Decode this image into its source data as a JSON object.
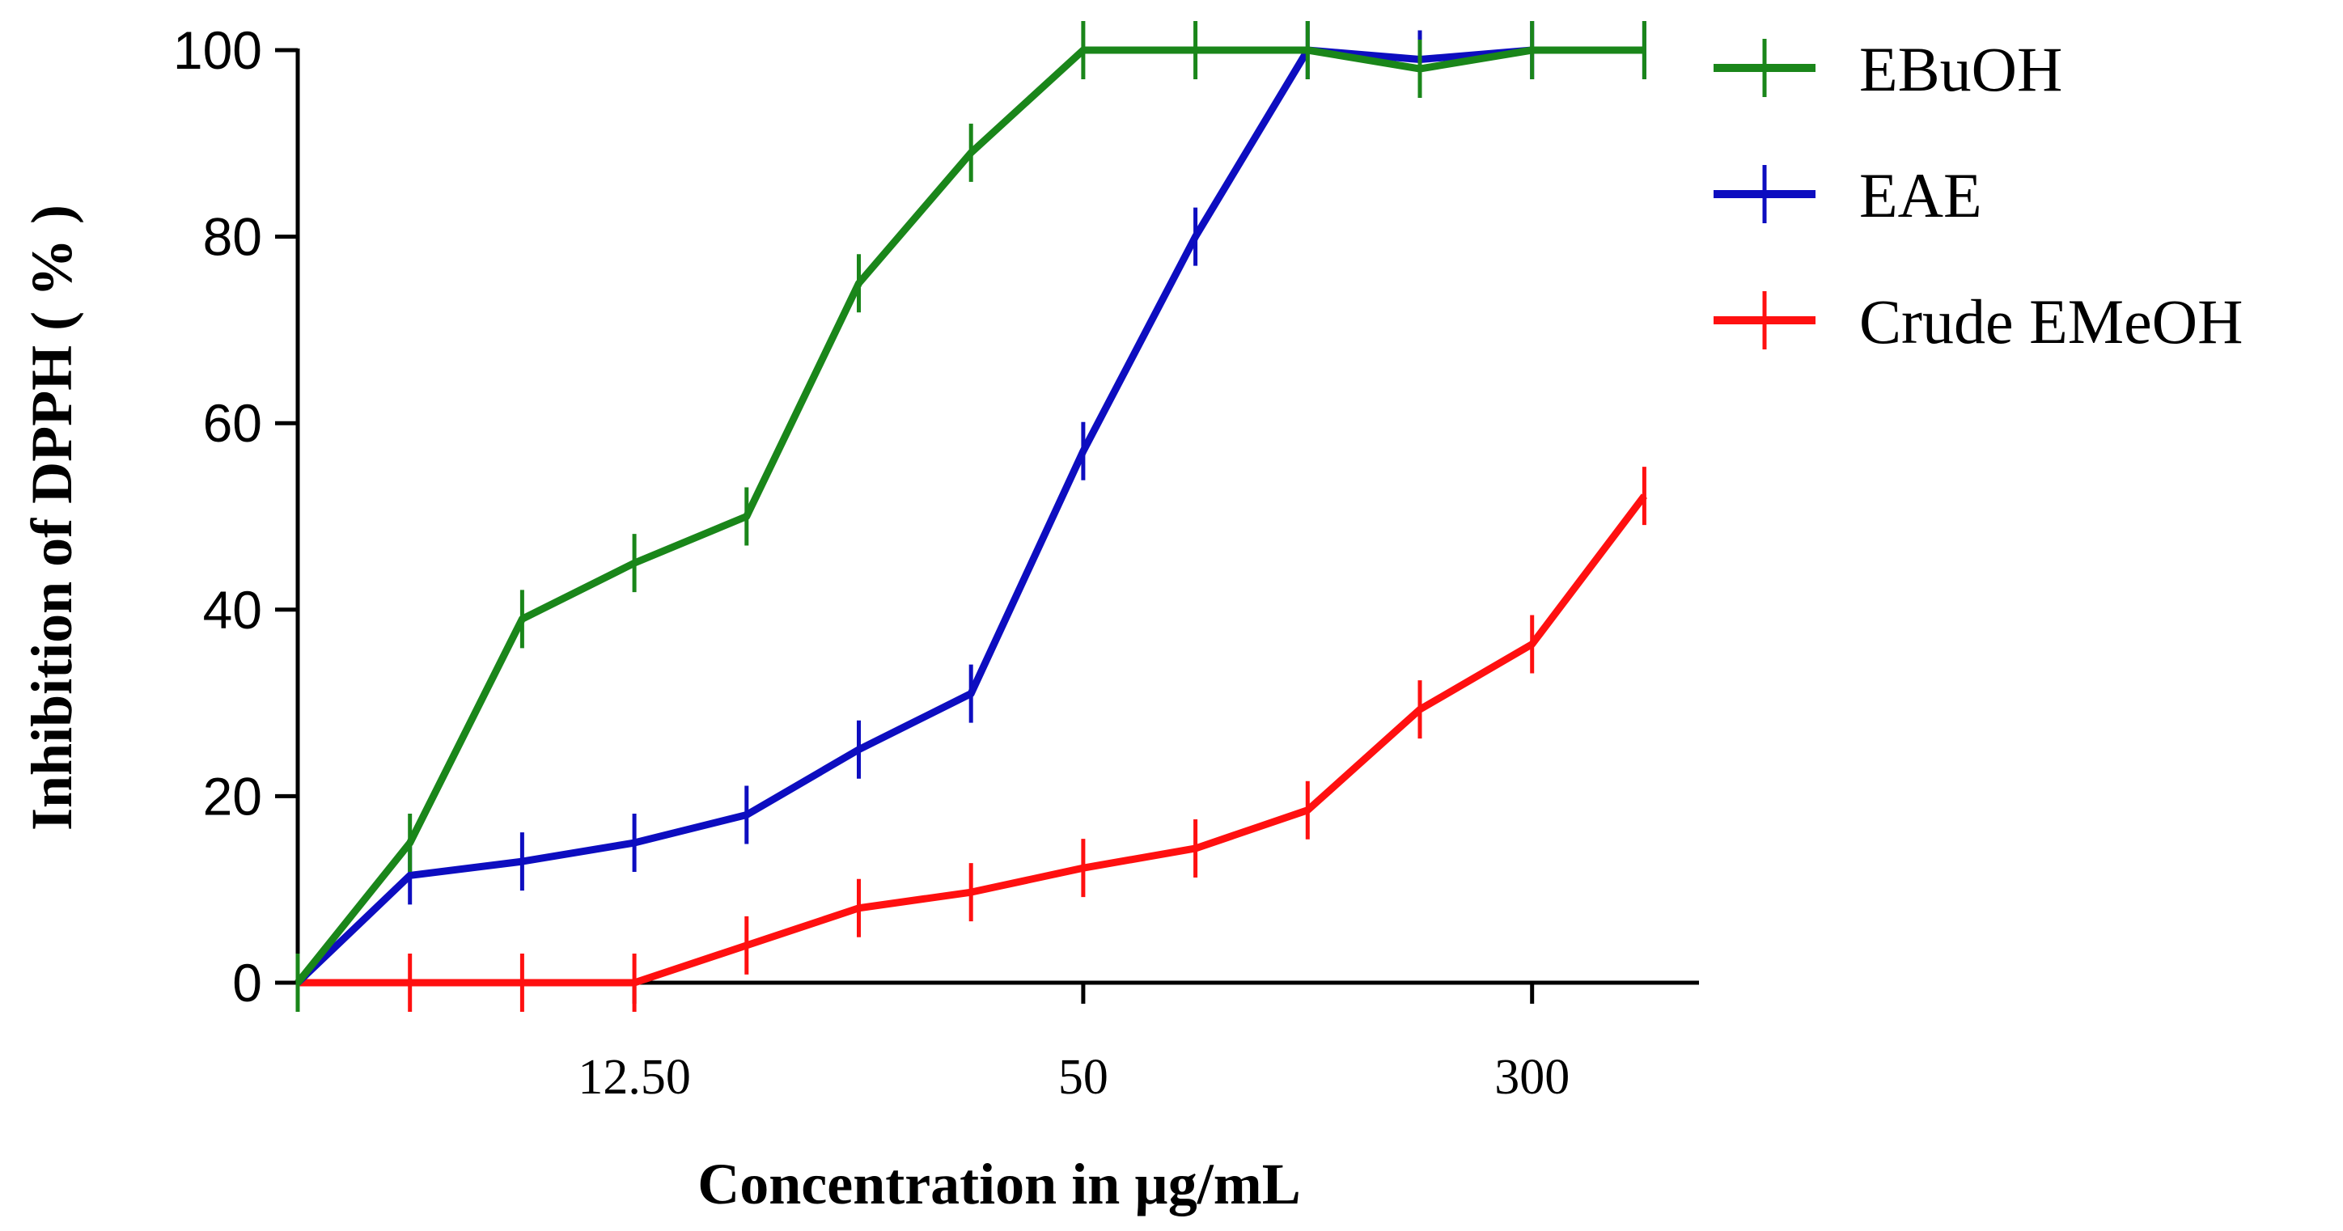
{
  "chart_data": {
    "type": "line",
    "title": "",
    "xlabel": "Concentration in µg/mL",
    "ylabel": "Inhibition of DPPH ( % )",
    "ylim": [
      0,
      100
    ],
    "yticks": [
      0,
      20,
      40,
      60,
      80,
      100
    ],
    "ytick_labels": [
      "0",
      "20",
      "40",
      "60",
      "80",
      "100"
    ],
    "x": [
      0,
      1,
      2,
      3,
      4,
      5,
      6,
      7,
      8,
      9,
      10,
      11,
      12
    ],
    "xticks": [
      {
        "pos": 3,
        "label": "12.50"
      },
      {
        "pos": 7,
        "label": "50"
      },
      {
        "pos": 11,
        "label": "300"
      }
    ],
    "grid": false,
    "legend_position": "top-right",
    "series": [
      {
        "name": "EBuOH",
        "color": "#1a861a",
        "values": [
          0,
          15,
          39,
          45,
          50,
          75,
          89,
          100,
          100,
          100,
          98,
          100,
          100
        ]
      },
      {
        "name": "EAE",
        "color": "#0d0dc0",
        "values": [
          0,
          11.5,
          13,
          15,
          18,
          25,
          31,
          57,
          80,
          100,
          99,
          100,
          100
        ]
      },
      {
        "name": "Crude EMeOH",
        "color": "#ff1010",
        "values": [
          0,
          0,
          0,
          0,
          4,
          8,
          9.7,
          12.3,
          14.4,
          18.5,
          29.3,
          36.3,
          52.2
        ]
      }
    ]
  }
}
